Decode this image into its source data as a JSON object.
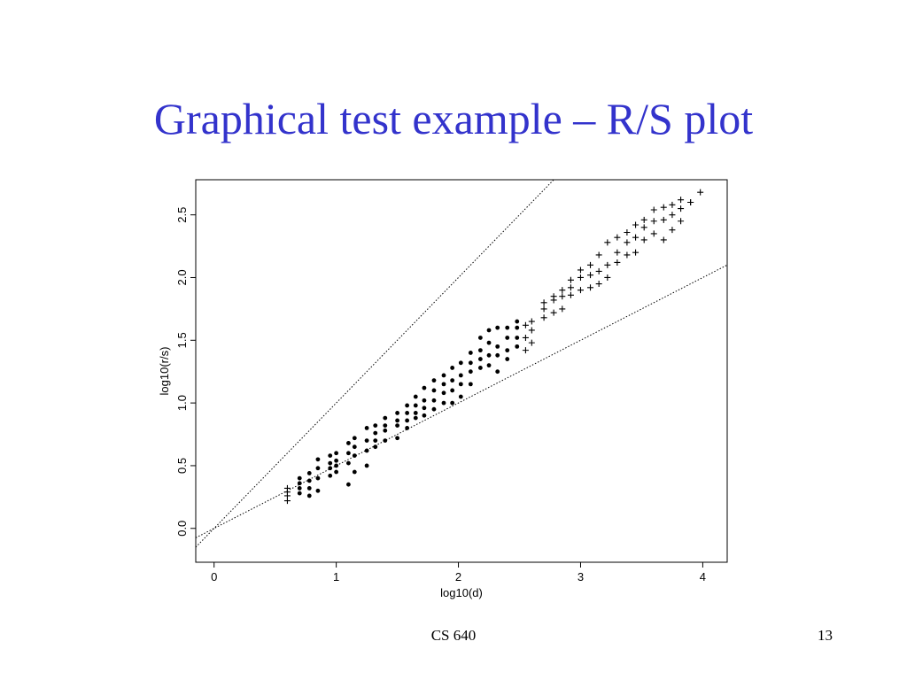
{
  "slide": {
    "title": "Graphical test example – R/S plot",
    "footer_center": "CS 640",
    "page_number": "13"
  },
  "colors": {
    "title": "#3333cc",
    "ink": "#000000"
  },
  "chart_data": {
    "type": "scatter",
    "title": "",
    "xlabel": "log10(d)",
    "ylabel": "log10(r/s)",
    "xlim": [
      -0.15,
      4.2
    ],
    "ylim": [
      -0.27,
      2.78
    ],
    "x_ticks": [
      0,
      1,
      2,
      3,
      4
    ],
    "y_ticks": [
      0.0,
      0.5,
      1.0,
      1.5,
      2.0,
      2.5
    ],
    "grid": false,
    "reference_lines": [
      {
        "slope": 1.0,
        "intercept": 0,
        "style": "dotted"
      },
      {
        "slope": 0.5,
        "intercept": 0,
        "style": "dotted"
      }
    ],
    "series": [
      {
        "marker": "dot",
        "x": [
          0.7,
          0.7,
          0.7,
          0.7,
          0.78,
          0.78,
          0.78,
          0.78,
          0.85,
          0.85,
          0.85,
          0.85,
          0.95,
          0.95,
          0.95,
          0.95,
          1.0,
          1.0,
          1.0,
          1.0,
          1.1,
          1.1,
          1.1,
          1.1,
          1.15,
          1.15,
          1.15,
          1.15,
          1.25,
          1.25,
          1.25,
          1.25,
          1.32,
          1.32,
          1.32,
          1.32,
          1.4,
          1.4,
          1.4,
          1.4,
          1.5,
          1.5,
          1.5,
          1.5,
          1.58,
          1.58,
          1.58,
          1.58,
          1.65,
          1.65,
          1.65,
          1.65,
          1.72,
          1.72,
          1.72,
          1.72,
          1.8,
          1.8,
          1.8,
          1.8,
          1.88,
          1.88,
          1.88,
          1.88,
          1.95,
          1.95,
          1.95,
          1.95,
          2.02,
          2.02,
          2.02,
          2.02,
          2.1,
          2.1,
          2.1,
          2.1,
          2.18,
          2.18,
          2.18,
          2.18,
          2.25,
          2.25,
          2.25,
          2.25,
          2.32,
          2.32,
          2.32,
          2.32,
          2.4,
          2.4,
          2.4,
          2.4,
          2.48,
          2.48,
          2.48,
          2.48
        ],
        "y": [
          0.28,
          0.32,
          0.36,
          0.4,
          0.26,
          0.32,
          0.38,
          0.44,
          0.3,
          0.4,
          0.48,
          0.55,
          0.42,
          0.48,
          0.52,
          0.58,
          0.45,
          0.5,
          0.54,
          0.6,
          0.35,
          0.52,
          0.6,
          0.68,
          0.45,
          0.58,
          0.65,
          0.72,
          0.5,
          0.62,
          0.7,
          0.8,
          0.65,
          0.7,
          0.76,
          0.82,
          0.7,
          0.78,
          0.82,
          0.88,
          0.72,
          0.82,
          0.86,
          0.92,
          0.8,
          0.86,
          0.92,
          0.98,
          0.88,
          0.92,
          0.98,
          1.05,
          0.9,
          0.96,
          1.02,
          1.12,
          0.95,
          1.02,
          1.1,
          1.18,
          1.0,
          1.08,
          1.15,
          1.22,
          1.0,
          1.1,
          1.18,
          1.28,
          1.05,
          1.15,
          1.22,
          1.32,
          1.15,
          1.25,
          1.32,
          1.4,
          1.28,
          1.35,
          1.42,
          1.52,
          1.3,
          1.38,
          1.48,
          1.58,
          1.25,
          1.38,
          1.45,
          1.6,
          1.35,
          1.42,
          1.52,
          1.6,
          1.45,
          1.52,
          1.6,
          1.65
        ]
      },
      {
        "marker": "plus",
        "x": [
          0.6,
          0.6,
          0.6,
          0.6,
          2.55,
          2.55,
          2.55,
          2.6,
          2.6,
          2.6,
          2.7,
          2.7,
          2.7,
          2.78,
          2.78,
          2.78,
          2.85,
          2.85,
          2.85,
          2.92,
          2.92,
          2.92,
          3.0,
          3.0,
          3.0,
          3.08,
          3.08,
          3.08,
          3.15,
          3.15,
          3.15,
          3.22,
          3.22,
          3.22,
          3.3,
          3.3,
          3.3,
          3.38,
          3.38,
          3.38,
          3.45,
          3.45,
          3.45,
          3.52,
          3.52,
          3.52,
          3.6,
          3.6,
          3.6,
          3.68,
          3.68,
          3.68,
          3.75,
          3.75,
          3.75,
          3.82,
          3.82,
          3.82,
          3.9,
          3.9,
          3.98
        ],
        "y": [
          0.22,
          0.26,
          0.29,
          0.32,
          1.42,
          1.52,
          1.62,
          1.48,
          1.58,
          1.65,
          1.68,
          1.75,
          1.8,
          1.72,
          1.82,
          1.85,
          1.75,
          1.85,
          1.9,
          1.86,
          1.92,
          1.98,
          1.9,
          2.0,
          2.06,
          1.92,
          2.02,
          2.1,
          1.95,
          2.05,
          2.18,
          2.0,
          2.1,
          2.28,
          2.12,
          2.2,
          2.32,
          2.18,
          2.28,
          2.36,
          2.2,
          2.32,
          2.42,
          2.3,
          2.4,
          2.46,
          2.35,
          2.45,
          2.54,
          2.3,
          2.46,
          2.56,
          2.38,
          2.5,
          2.58,
          2.45,
          2.55,
          2.62,
          2.6,
          2.6,
          2.68
        ]
      }
    ]
  }
}
